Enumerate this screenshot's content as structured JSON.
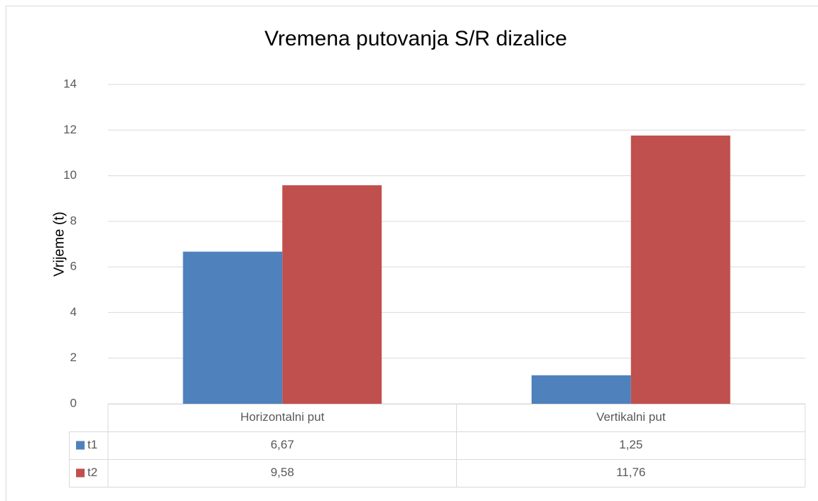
{
  "chart_data": {
    "type": "bar",
    "title": "Vremena putovanja S/R dizalice",
    "y_label": "Vrijeme (t)",
    "categories": [
      "Horizontalni put",
      "Vertikalni put"
    ],
    "series": [
      {
        "name": "t1",
        "color": "#4f81bd",
        "values": [
          6.67,
          1.25
        ],
        "value_labels": [
          "6,67",
          "1,25"
        ]
      },
      {
        "name": "t2",
        "color": "#c0504d",
        "values": [
          9.58,
          11.76
        ],
        "value_labels": [
          "9,58",
          "11,76"
        ]
      }
    ],
    "ylim": [
      0,
      14
    ],
    "yticks": [
      0,
      2,
      4,
      6,
      8,
      10,
      12,
      14
    ],
    "grid": true,
    "data_table": true
  }
}
